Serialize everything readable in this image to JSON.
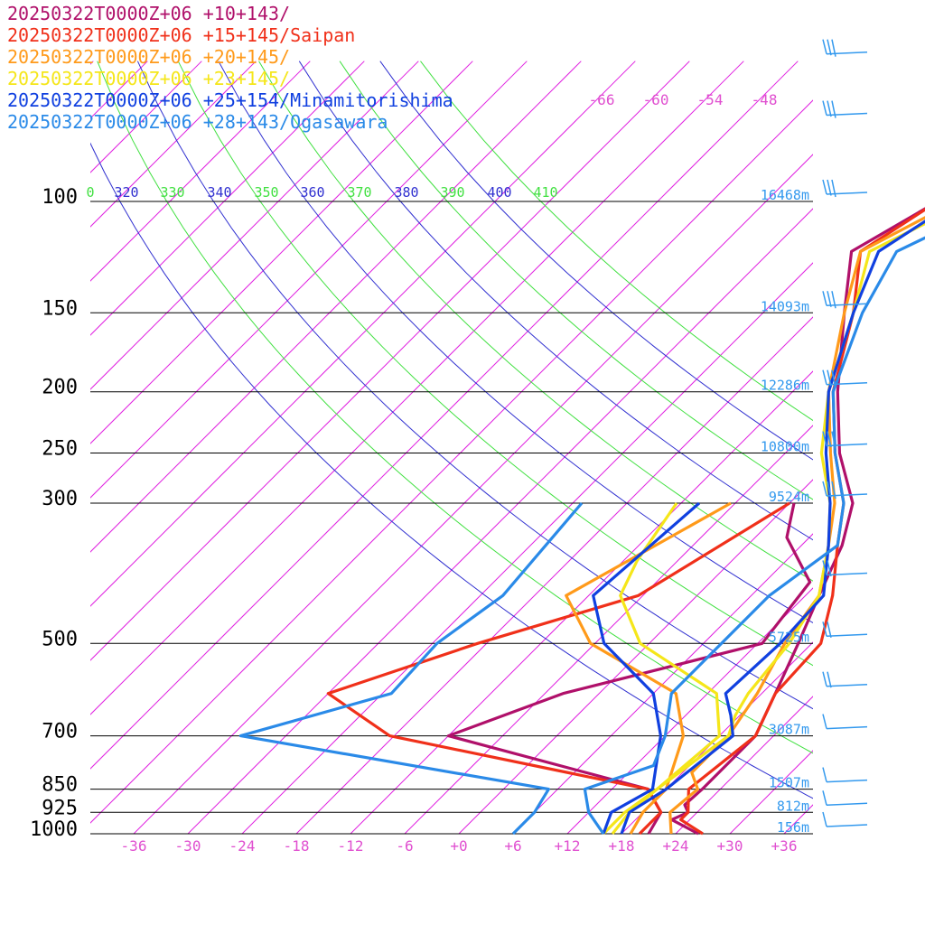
{
  "chart_data": {
    "type": "line",
    "legend_position": "top-left",
    "colors": {
      "isobar": "#000000",
      "isotherm": "#e020e0",
      "theta": "#3030d0",
      "theta_alt": "#40e040",
      "height_label": "#3399ee",
      "temp_label": "#e050d0"
    },
    "pressure_levels": [
      100,
      150,
      200,
      250,
      300,
      500,
      700,
      850,
      925,
      1000
    ],
    "pressure_labels": [
      "100",
      "150",
      "200",
      "250",
      "300",
      "500",
      "700",
      "850",
      "925",
      "1000"
    ],
    "height_labels": [
      "16468m",
      "14093m",
      "12286m",
      "10800m",
      "9524m",
      "5725m",
      "3087m",
      "1507m",
      "812m",
      "156m"
    ],
    "x_tick_values": [
      -36,
      -30,
      -24,
      -18,
      -12,
      -6,
      0,
      6,
      12,
      18,
      24,
      30,
      36
    ],
    "x_tick_labels": [
      "-36",
      "-30",
      "-24",
      "-18",
      "-12",
      "-6",
      "+0",
      "+6",
      "+12",
      "+18",
      "+24",
      "+30",
      "+36"
    ],
    "top_temp_labels": [
      "-66",
      "-60",
      "-54",
      "-48"
    ],
    "theta_labels": [
      "0",
      "320",
      "330",
      "340",
      "350",
      "360",
      "370",
      "380",
      "390",
      "400",
      "410"
    ],
    "theta_lines": [
      320,
      330,
      340,
      350,
      360,
      370,
      380,
      390,
      400,
      410
    ],
    "series": [
      {
        "name": "20250322T0000Z+06 +10+143/",
        "color": "#b0106a",
        "temperature": [
          {
            "p": 1000,
            "t": 26.5
          },
          {
            "p": 950,
            "t": 22
          },
          {
            "p": 925,
            "t": 23
          },
          {
            "p": 900,
            "t": 21.8
          },
          {
            "p": 850,
            "t": 22
          },
          {
            "p": 700,
            "t": 22
          },
          {
            "p": 600,
            "t": 19.5
          },
          {
            "p": 500,
            "t": 16.5
          },
          {
            "p": 420,
            "t": 13.5
          },
          {
            "p": 350,
            "t": 10.5
          },
          {
            "p": 300,
            "t": 7
          },
          {
            "p": 250,
            "t": 0
          },
          {
            "p": 200,
            "t": -7
          },
          {
            "p": 150,
            "t": -15
          },
          {
            "p": 120,
            "t": -21
          },
          {
            "p": 100,
            "t": -17
          },
          {
            "p": 85,
            "t": -6
          },
          {
            "p": 70,
            "t": 5
          },
          {
            "p": 62,
            "t": 19
          }
        ],
        "dewpoint": [
          {
            "p": 1000,
            "t": 21
          },
          {
            "p": 925,
            "t": 20
          },
          {
            "p": 850,
            "t": 16
          },
          {
            "p": 700,
            "t": -12
          },
          {
            "p": 600,
            "t": -4
          },
          {
            "p": 500,
            "t": 12.5
          },
          {
            "p": 400,
            "t": 11
          },
          {
            "p": 340,
            "t": 3.5
          },
          {
            "p": 300,
            "t": 0.5
          }
        ]
      },
      {
        "name": "20250322T0000Z+06 +15+145/Saipan",
        "color": "#f0301a",
        "temperature": [
          {
            "p": 1000,
            "t": 27
          },
          {
            "p": 950,
            "t": 23
          },
          {
            "p": 925,
            "t": 23
          },
          {
            "p": 850,
            "t": 20.5
          },
          {
            "p": 700,
            "t": 22
          },
          {
            "p": 600,
            "t": 19.5
          },
          {
            "p": 500,
            "t": 19
          },
          {
            "p": 420,
            "t": 15
          },
          {
            "p": 350,
            "t": 10
          },
          {
            "p": 300,
            "t": 6
          },
          {
            "p": 250,
            "t": -0.5
          },
          {
            "p": 200,
            "t": -7.5
          },
          {
            "p": 150,
            "t": -14
          },
          {
            "p": 120,
            "t": -20
          },
          {
            "p": 100,
            "t": -17
          },
          {
            "p": 85,
            "t": -8
          },
          {
            "p": 70,
            "t": 4
          },
          {
            "p": 62,
            "t": 20
          }
        ],
        "dewpoint": [
          {
            "p": 1000,
            "t": 20
          },
          {
            "p": 925,
            "t": 20
          },
          {
            "p": 850,
            "t": 16
          },
          {
            "p": 700,
            "t": -18.5
          },
          {
            "p": 600,
            "t": -30
          },
          {
            "p": 500,
            "t": -19
          },
          {
            "p": 420,
            "t": -6.5
          },
          {
            "p": 300,
            "t": 0
          }
        ]
      },
      {
        "name": "20250322T0000Z+06 +20+145/",
        "color": "#ff9a1a",
        "temperature": [
          {
            "p": 1000,
            "t": 23.5
          },
          {
            "p": 925,
            "t": 21
          },
          {
            "p": 850,
            "t": 21.5
          },
          {
            "p": 800,
            "t": 19
          },
          {
            "p": 700,
            "t": 19
          },
          {
            "p": 600,
            "t": 17.5
          },
          {
            "p": 500,
            "t": 15
          },
          {
            "p": 420,
            "t": 13.5
          },
          {
            "p": 350,
            "t": 9
          },
          {
            "p": 300,
            "t": 5
          },
          {
            "p": 250,
            "t": -1
          },
          {
            "p": 200,
            "t": -8
          },
          {
            "p": 150,
            "t": -15
          },
          {
            "p": 120,
            "t": -20
          },
          {
            "p": 100,
            "t": -15
          },
          {
            "p": 85,
            "t": -7
          },
          {
            "p": 70,
            "t": 5
          },
          {
            "p": 62,
            "t": 17
          }
        ],
        "dewpoint": [
          {
            "p": 1000,
            "t": 19
          },
          {
            "p": 925,
            "t": 18
          },
          {
            "p": 850,
            "t": 18
          },
          {
            "p": 700,
            "t": 14
          },
          {
            "p": 600,
            "t": 8.5
          },
          {
            "p": 500,
            "t": -6.5
          },
          {
            "p": 420,
            "t": -14.5
          },
          {
            "p": 300,
            "t": -6.5
          }
        ]
      },
      {
        "name": "20250322T0000Z+06 +23+145/",
        "color": "#f5e61a",
        "temperature": [
          {
            "p": 1000,
            "t": 17
          },
          {
            "p": 925,
            "t": 16.5
          },
          {
            "p": 850,
            "t": 17
          },
          {
            "p": 700,
            "t": 19
          },
          {
            "p": 650,
            "t": 17.5
          },
          {
            "p": 600,
            "t": 16.5
          },
          {
            "p": 500,
            "t": 15.5
          },
          {
            "p": 420,
            "t": 13.5
          },
          {
            "p": 350,
            "t": 9
          },
          {
            "p": 300,
            "t": 4.5
          },
          {
            "p": 250,
            "t": -2
          },
          {
            "p": 200,
            "t": -8
          },
          {
            "p": 150,
            "t": -14
          },
          {
            "p": 120,
            "t": -19
          },
          {
            "p": 100,
            "t": -13.5
          },
          {
            "p": 85,
            "t": -6
          },
          {
            "p": 70,
            "t": 6
          },
          {
            "p": 62,
            "t": 18
          }
        ],
        "dewpoint": [
          {
            "p": 1000,
            "t": 16
          },
          {
            "p": 925,
            "t": 16
          },
          {
            "p": 850,
            "t": 17
          },
          {
            "p": 700,
            "t": 18
          },
          {
            "p": 600,
            "t": 13
          },
          {
            "p": 500,
            "t": -1
          },
          {
            "p": 420,
            "t": -8.5
          },
          {
            "p": 370,
            "t": -10.5
          },
          {
            "p": 300,
            "t": -12.5
          }
        ]
      },
      {
        "name": "20250322T0000Z+06 +25+154/Minamitorishima",
        "color": "#1040e0",
        "temperature": [
          {
            "p": 1000,
            "t": 18
          },
          {
            "p": 925,
            "t": 16.5
          },
          {
            "p": 850,
            "t": 18
          },
          {
            "p": 700,
            "t": 19.5
          },
          {
            "p": 650,
            "t": 17
          },
          {
            "p": 600,
            "t": 14
          },
          {
            "p": 500,
            "t": 14.5
          },
          {
            "p": 420,
            "t": 14
          },
          {
            "p": 350,
            "t": 9
          },
          {
            "p": 300,
            "t": 4.5
          },
          {
            "p": 250,
            "t": -1.5
          },
          {
            "p": 200,
            "t": -8
          },
          {
            "p": 150,
            "t": -14
          },
          {
            "p": 120,
            "t": -18
          },
          {
            "p": 100,
            "t": -15
          },
          {
            "p": 85,
            "t": -7
          },
          {
            "p": 70,
            "t": 4
          },
          {
            "p": 62,
            "t": 24
          }
        ],
        "dewpoint": [
          {
            "p": 1000,
            "t": 16
          },
          {
            "p": 925,
            "t": 14.5
          },
          {
            "p": 850,
            "t": 16.5
          },
          {
            "p": 700,
            "t": 11.5
          },
          {
            "p": 600,
            "t": 6
          },
          {
            "p": 500,
            "t": -5
          },
          {
            "p": 420,
            "t": -11.5
          },
          {
            "p": 300,
            "t": -10
          }
        ]
      },
      {
        "name": "20250322T0000Z+06 +28+143/Ogasawara",
        "color": "#2a8ae8",
        "temperature": [
          {
            "p": 1000,
            "t": 16
          },
          {
            "p": 925,
            "t": 12
          },
          {
            "p": 850,
            "t": 9
          },
          {
            "p": 780,
            "t": 14
          },
          {
            "p": 700,
            "t": 12
          },
          {
            "p": 600,
            "t": 8
          },
          {
            "p": 500,
            "t": 8
          },
          {
            "p": 420,
            "t": 8
          },
          {
            "p": 350,
            "t": 10
          },
          {
            "p": 300,
            "t": 6
          },
          {
            "p": 250,
            "t": -0.5
          },
          {
            "p": 200,
            "t": -7.5
          },
          {
            "p": 150,
            "t": -13
          },
          {
            "p": 120,
            "t": -16
          },
          {
            "p": 100,
            "t": -10
          },
          {
            "p": 85,
            "t": -2
          }
        ],
        "dewpoint": [
          {
            "p": 1000,
            "t": 6
          },
          {
            "p": 925,
            "t": 6
          },
          {
            "p": 850,
            "t": 5
          },
          {
            "p": 700,
            "t": -35
          },
          {
            "p": 600,
            "t": -23
          },
          {
            "p": 500,
            "t": -23.5
          },
          {
            "p": 420,
            "t": -21.5
          },
          {
            "p": 300,
            "t": -23
          }
        ]
      }
    ]
  }
}
